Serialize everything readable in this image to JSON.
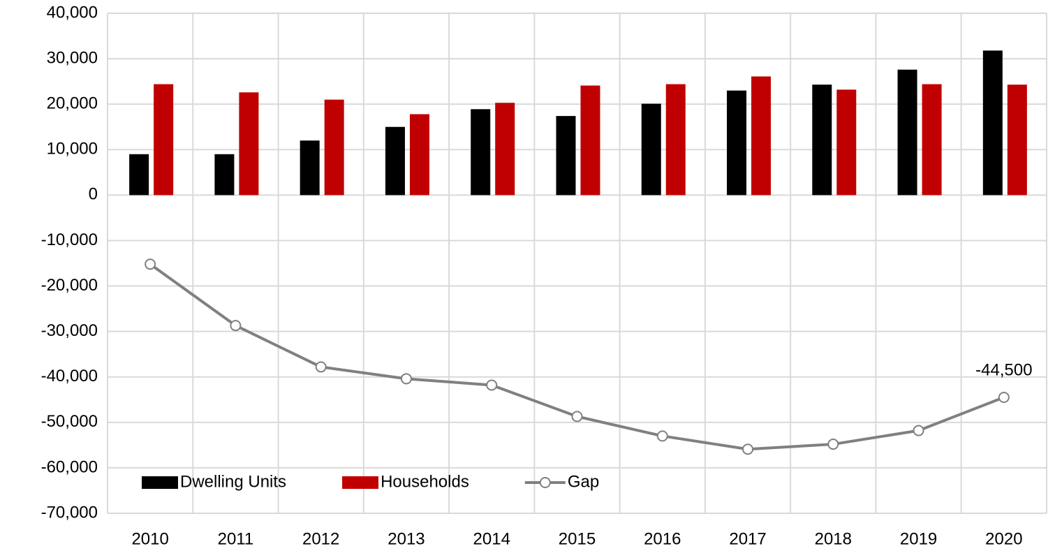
{
  "chart_data": {
    "type": "bar-line",
    "categories": [
      "2010",
      "2011",
      "2012",
      "2013",
      "2014",
      "2015",
      "2016",
      "2017",
      "2018",
      "2019",
      "2020"
    ],
    "series": [
      {
        "name": "Dwelling Units",
        "color": "#000000",
        "type": "bar",
        "values": [
          9000,
          9000,
          12000,
          15000,
          18900,
          17400,
          20100,
          23000,
          24300,
          27600,
          31800
        ]
      },
      {
        "name": "Households",
        "color": "#c00000",
        "type": "bar",
        "values": [
          24400,
          22600,
          21000,
          17800,
          20300,
          24100,
          24400,
          26100,
          23200,
          24400,
          24300
        ]
      },
      {
        "name": "Gap",
        "color": "#808080",
        "type": "line",
        "values": [
          -15200,
          -28700,
          -37800,
          -40400,
          -41800,
          -48700,
          -53000,
          -55900,
          -54800,
          -51800,
          -44500
        ],
        "value_labels": [
          null,
          null,
          null,
          null,
          null,
          null,
          null,
          null,
          null,
          null,
          "-44,500"
        ]
      }
    ],
    "ylim": [
      -70000,
      40000
    ],
    "yticks": [
      {
        "value": -70000,
        "label": "-70,000"
      },
      {
        "value": -60000,
        "label": "-60,000"
      },
      {
        "value": -50000,
        "label": "-50,000"
      },
      {
        "value": -40000,
        "label": "-40,000"
      },
      {
        "value": -30000,
        "label": "-30,000"
      },
      {
        "value": -20000,
        "label": "-20,000"
      },
      {
        "value": -10000,
        "label": "-10,000"
      },
      0,
      {
        "value": 10000,
        "label": "10,000"
      },
      {
        "value": 20000,
        "label": "20,000"
      },
      {
        "value": 30000,
        "label": "30,000"
      },
      {
        "value": 40000,
        "label": "40,000"
      }
    ],
    "grid": true,
    "legend": "lower left"
  }
}
